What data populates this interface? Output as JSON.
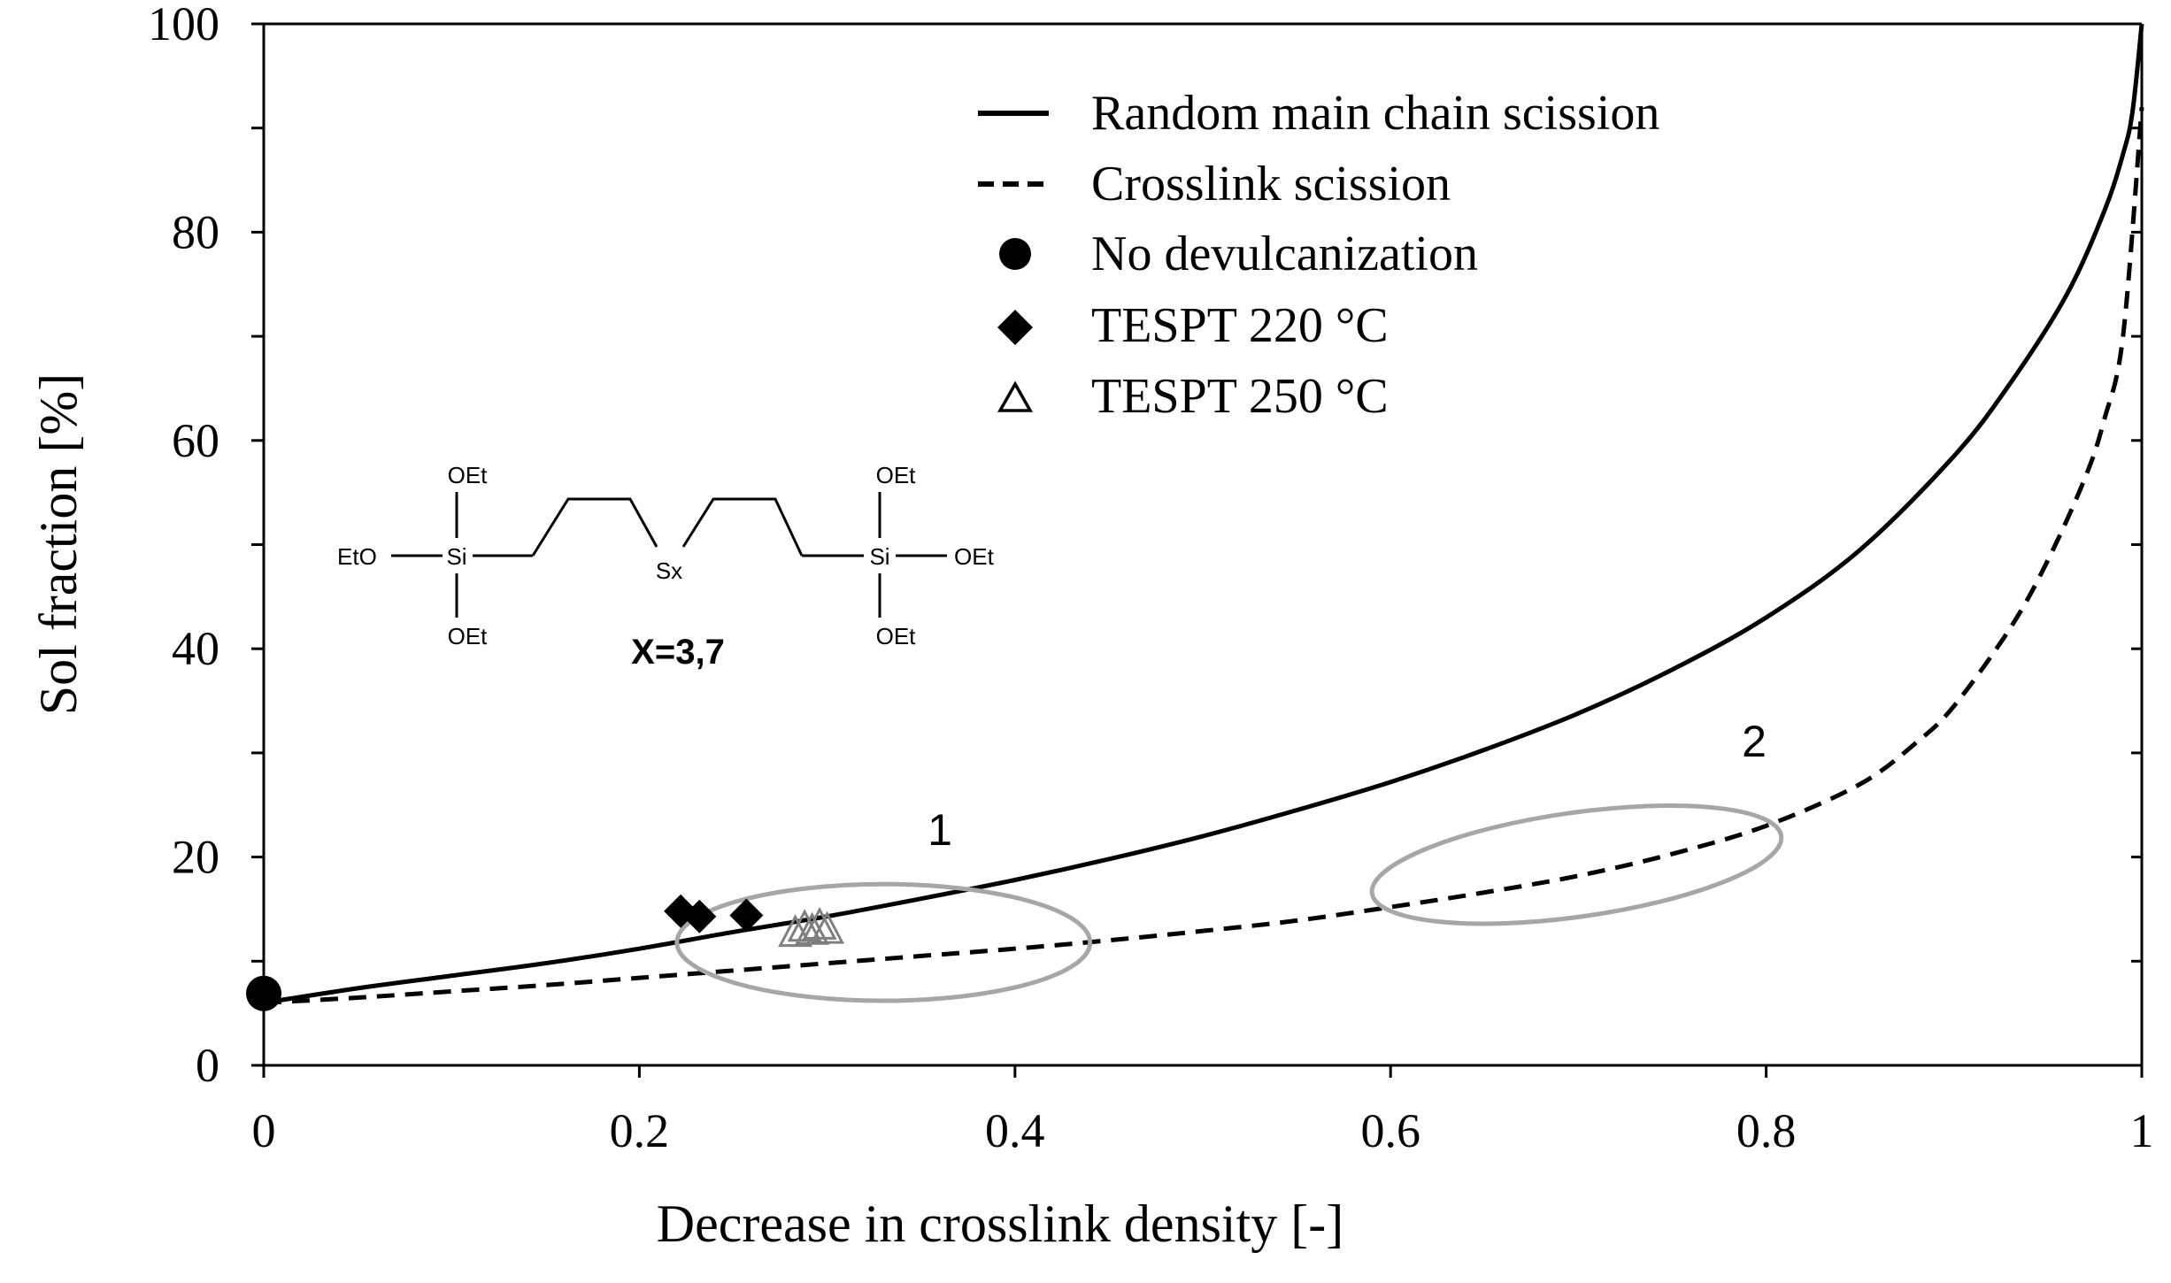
{
  "chart_data": {
    "type": "line",
    "title": "",
    "xlabel": "Decrease in crosslink density [-]",
    "ylabel": "Sol fraction [%]",
    "xlim": [
      0,
      1
    ],
    "ylim": [
      0,
      100
    ],
    "xticks": [
      0,
      0.2,
      0.4,
      0.6,
      0.8,
      1
    ],
    "xtick_labels": [
      "0",
      "0.2",
      "0.4",
      "0.6",
      "0.8",
      "1"
    ],
    "yticks": [
      0,
      20,
      40,
      60,
      80,
      100
    ],
    "ytick_labels": [
      "0",
      "20",
      "40",
      "60",
      "80",
      "100"
    ],
    "legend_position": "top-center",
    "series": [
      {
        "name": "Random main chain scission",
        "style": "solid",
        "x": [
          0,
          0.05,
          0.1,
          0.15,
          0.2,
          0.25,
          0.3,
          0.35,
          0.4,
          0.45,
          0.5,
          0.55,
          0.6,
          0.65,
          0.7,
          0.75,
          0.8,
          0.85,
          0.9,
          0.93,
          0.96,
          0.98,
          0.99,
          0.995,
          1
        ],
        "y": [
          6,
          7.4,
          8.6,
          9.8,
          11.2,
          12.8,
          14.3,
          16,
          17.8,
          19.8,
          22,
          24.5,
          27.2,
          30.3,
          33.8,
          38,
          43,
          49.5,
          58.5,
          65.5,
          74,
          82,
          87.5,
          91.5,
          100
        ]
      },
      {
        "name": "Crosslink scission",
        "style": "dashed",
        "x": [
          0,
          0.05,
          0.1,
          0.15,
          0.2,
          0.25,
          0.3,
          0.35,
          0.4,
          0.45,
          0.5,
          0.55,
          0.6,
          0.65,
          0.7,
          0.75,
          0.8,
          0.85,
          0.88,
          0.9,
          0.93,
          0.95,
          0.97,
          0.98,
          0.99,
          1
        ],
        "y": [
          6,
          6.5,
          7.1,
          7.7,
          8.4,
          9.1,
          9.8,
          10.5,
          11.2,
          12,
          12.9,
          13.9,
          15.2,
          16.6,
          18.2,
          20.3,
          23,
          27,
          31,
          34.5,
          42,
          48.5,
          56.5,
          62,
          70,
          92
        ]
      },
      {
        "name": "No devulcanization",
        "marker": "circle",
        "x": [
          0
        ],
        "y": [
          6.9
        ]
      },
      {
        "name": "TESPT 220 °C",
        "marker": "diamond",
        "x": [
          0.222,
          0.232,
          0.257
        ],
        "y": [
          14.8,
          14.3,
          14.4
        ]
      },
      {
        "name": "TESPT 250 °C",
        "marker": "open-triangle",
        "x": [
          0.283,
          0.288,
          0.292,
          0.296,
          0.3
        ],
        "y": [
          12.8,
          13.3,
          13.0,
          13.5,
          13.1
        ]
      }
    ],
    "annotations": [
      {
        "label": "1",
        "center": [
          0.33,
          11.8
        ],
        "x_radius": 0.11,
        "y_radius": 5.6
      },
      {
        "label": "2",
        "center": [
          0.7,
          19.0
        ],
        "x_radius": 0.11,
        "y_radius": 5.0
      }
    ]
  },
  "inset": {
    "left_group": "EtO",
    "center_atom": "Si",
    "top_group": "OEt",
    "bottom_group": "OEt",
    "bridge": "Sx",
    "right_group": "OEt",
    "formula": "X=3,7"
  }
}
